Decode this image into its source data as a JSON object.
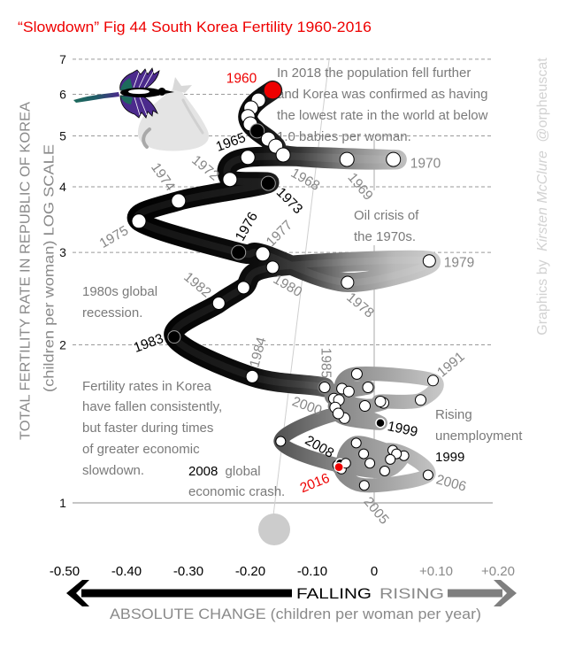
{
  "figure": {
    "title": "“Slowdown” Fig 44 South Korea Fertility 1960-2016",
    "credit": {
      "prefix": "Graphics by",
      "author": "Kirsten McClure",
      "handle": "@orpheuscat"
    },
    "colors": {
      "title": "#ee0000",
      "highlight_red": "#ee0000",
      "falling": "#000000",
      "rising": "#888888",
      "annotation": "#7a7a7a",
      "label_gray": "#888888",
      "band_dark": "#000000",
      "band_light": "#cdcdcd"
    }
  },
  "chart_data": {
    "type": "line",
    "subtype": "connected-scatter",
    "title": "“Slowdown” Fig 44 South Korea Fertility 1960-2016",
    "xlabel": "ABSOLUTE CHANGE (children per woman per year)",
    "ylabel": "TOTAL FERTILITY RATE IN REPUBLIC OF KOREA",
    "ylabel_sub": "(children per woman) LOG SCALE",
    "direction_labels": {
      "falling": "FALLING",
      "rising": "RISING"
    },
    "xlim": [
      -0.5,
      0.2
    ],
    "ylim": [
      1,
      7
    ],
    "yscale": "log",
    "grid": true,
    "legend": "none",
    "x_ticks": [
      {
        "value": -0.5,
        "label": "-0.50"
      },
      {
        "value": -0.4,
        "label": "-0.40"
      },
      {
        "value": -0.3,
        "label": "-0.30"
      },
      {
        "value": -0.2,
        "label": "-0.20"
      },
      {
        "value": -0.1,
        "label": "-0.10"
      },
      {
        "value": 0,
        "label": "0"
      },
      {
        "value": 0.1,
        "label": "+0.10"
      },
      {
        "value": 0.2,
        "label": "+0.20"
      }
    ],
    "y_ticks": [
      {
        "value": 1,
        "label": "1"
      },
      {
        "value": 2,
        "label": "2"
      },
      {
        "value": 3,
        "label": "3"
      },
      {
        "value": 4,
        "label": "4"
      },
      {
        "value": 5,
        "label": "5"
      },
      {
        "value": 6,
        "label": "6"
      },
      {
        "value": 7,
        "label": "7"
      }
    ],
    "series": [
      {
        "name": "South Korea total fertility rate vs annual change",
        "points": [
          {
            "year": 1960,
            "change": -0.164,
            "tfr": 6.11,
            "marker": "red",
            "label_color": "red"
          },
          {
            "year": 1961,
            "change": -0.187,
            "tfr": 5.85
          },
          {
            "year": 1962,
            "change": -0.199,
            "tfr": 5.65
          },
          {
            "year": 1963,
            "change": -0.204,
            "tfr": 5.44
          },
          {
            "year": 1964,
            "change": -0.2,
            "tfr": 5.27
          },
          {
            "year": 1965,
            "change": -0.189,
            "tfr": 5.11,
            "marker": "black",
            "label_color": "black"
          },
          {
            "year": 1966,
            "change": -0.171,
            "tfr": 4.93
          },
          {
            "year": 1967,
            "change": -0.159,
            "tfr": 4.78
          },
          {
            "year": 1968,
            "change": -0.147,
            "tfr": 4.6,
            "label_color": "gray"
          },
          {
            "year": 1969,
            "change": -0.044,
            "tfr": 4.51,
            "label_color": "gray"
          },
          {
            "year": 1970,
            "change": 0.031,
            "tfr": 4.51,
            "label_color": "gray"
          },
          {
            "year": 1971,
            "change": -0.204,
            "tfr": 4.55
          },
          {
            "year": 1972,
            "change": -0.233,
            "tfr": 4.13,
            "label_color": "gray"
          },
          {
            "year": 1973,
            "change": -0.171,
            "tfr": 4.06,
            "marker": "black",
            "label_color": "black"
          },
          {
            "year": 1974,
            "change": -0.316,
            "tfr": 3.76,
            "label_color": "gray"
          },
          {
            "year": 1975,
            "change": -0.38,
            "tfr": 3.44,
            "label_color": "gray"
          },
          {
            "year": 1976,
            "change": -0.219,
            "tfr": 3.0,
            "marker": "black",
            "label_color": "black"
          },
          {
            "year": 1977,
            "change": -0.18,
            "tfr": 2.98,
            "label_color": "gray"
          },
          {
            "year": 1978,
            "change": -0.043,
            "tfr": 2.63,
            "label_color": "gray"
          },
          {
            "year": 1979,
            "change": 0.089,
            "tfr": 2.89,
            "label_color": "gray"
          },
          {
            "year": 1980,
            "change": -0.164,
            "tfr": 2.81,
            "label_color": "gray"
          },
          {
            "year": 1981,
            "change": -0.211,
            "tfr": 2.57
          },
          {
            "year": 1982,
            "change": -0.251,
            "tfr": 2.4,
            "label_color": "gray"
          },
          {
            "year": 1983,
            "change": -0.323,
            "tfr": 2.07,
            "marker": "black",
            "label_color": "black"
          },
          {
            "year": 1984,
            "change": -0.197,
            "tfr": 1.74,
            "label_color": "gray"
          },
          {
            "year": 1985,
            "change": -0.08,
            "tfr": 1.66,
            "label_color": "gray"
          },
          {
            "year": 1986,
            "change": -0.065,
            "tfr": 1.58
          },
          {
            "year": 1987,
            "change": -0.015,
            "tfr": 1.53
          },
          {
            "year": 1988,
            "change": 0.015,
            "tfr": 1.55
          },
          {
            "year": 1989,
            "change": 0.01,
            "tfr": 1.56
          },
          {
            "year": 1990,
            "change": 0.075,
            "tfr": 1.57
          },
          {
            "year": 1991,
            "change": 0.095,
            "tfr": 1.71,
            "label_color": "gray"
          },
          {
            "year": 1992,
            "change": -0.028,
            "tfr": 1.76
          },
          {
            "year": 1993,
            "change": -0.052,
            "tfr": 1.65
          },
          {
            "year": 1994,
            "change": -0.01,
            "tfr": 1.66
          },
          {
            "year": 1995,
            "change": -0.041,
            "tfr": 1.63
          },
          {
            "year": 1996,
            "change": -0.057,
            "tfr": 1.57
          },
          {
            "year": 1997,
            "change": -0.063,
            "tfr": 1.52
          },
          {
            "year": 1998,
            "change": -0.048,
            "tfr": 1.45
          },
          {
            "year": 1999,
            "change": 0.01,
            "tfr": 1.42,
            "marker": "black",
            "label_color": "black"
          },
          {
            "year": 2000,
            "change": -0.058,
            "tfr": 1.48,
            "label_color": "gray"
          },
          {
            "year": 2001,
            "change": -0.151,
            "tfr": 1.31
          },
          {
            "year": 2002,
            "change": -0.059,
            "tfr": 1.18
          },
          {
            "year": 2003,
            "change": -0.007,
            "tfr": 1.19
          },
          {
            "year": 2004,
            "change": -0.053,
            "tfr": 1.16
          },
          {
            "year": 2005,
            "change": -0.016,
            "tfr": 1.08,
            "label_color": "gray"
          },
          {
            "year": 2006,
            "change": 0.087,
            "tfr": 1.13,
            "label_color": "gray"
          },
          {
            "year": 2007,
            "change": 0.03,
            "tfr": 1.26
          },
          {
            "year": 2008,
            "change": -0.055,
            "tfr": 1.19,
            "marker": "black",
            "label_color": "black"
          },
          {
            "year": 2009,
            "change": 0.017,
            "tfr": 1.15
          },
          {
            "year": 2010,
            "change": 0.048,
            "tfr": 1.23
          },
          {
            "year": 2011,
            "change": 0.036,
            "tfr": 1.24
          },
          {
            "year": 2012,
            "change": -0.029,
            "tfr": 1.3
          },
          {
            "year": 2013,
            "change": -0.046,
            "tfr": 1.19
          },
          {
            "year": 2014,
            "change": 0.026,
            "tfr": 1.21
          },
          {
            "year": 2015,
            "change": -0.017,
            "tfr": 1.24
          },
          {
            "year": 2016,
            "change": -0.057,
            "tfr": 1.17,
            "marker": "red",
            "label_color": "red"
          }
        ]
      }
    ],
    "annotations": {
      "population_2018": [
        "In 2018 the population fell further",
        "and Korea was confirmed as having",
        "the lowest rate in the world at below",
        "1.0 babies per woman."
      ],
      "oil_crisis": [
        "Oil crisis of",
        "the 1970s."
      ],
      "recession_1980s": [
        "1980s global",
        "recession."
      ],
      "summary": [
        "Fertility rates in Korea",
        "have fallen consistently,",
        "but faster during times",
        "of greater economic",
        "slowdown."
      ],
      "crash_2008": {
        "emphasis": "2008",
        "line1_rest": "global",
        "line2": "economic crash."
      },
      "unemployment_1999": {
        "line1": "Rising",
        "line2": "unemployment",
        "emphasis": "1999"
      }
    }
  }
}
